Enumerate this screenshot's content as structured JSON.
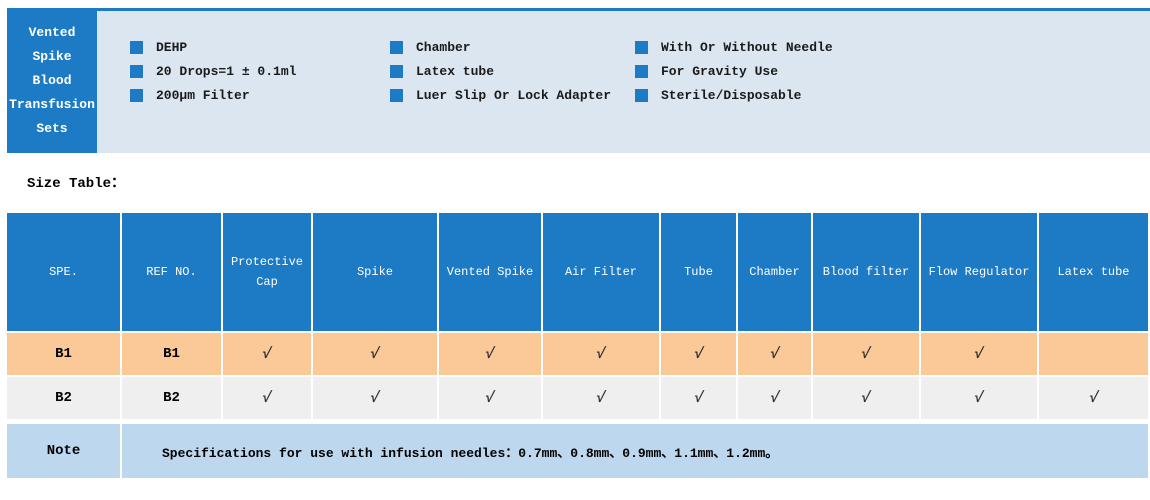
{
  "colors": {
    "primary_blue": "#1d7bc6",
    "panel_light_blue": "#dce6f1",
    "row_b1_orange": "#fbc998",
    "row_b2_gray": "#efefef",
    "note_row_blue": "#bdd7ee",
    "check_color": "#2e2e2e"
  },
  "header": {
    "title_lines": [
      "Vented",
      "Spike",
      "Blood",
      "Transfusion",
      "Sets"
    ],
    "feature_columns": [
      [
        "DEHP",
        "20 Drops=1 ± 0.1ml",
        "200μm Filter"
      ],
      [
        "Chamber",
        "Latex tube",
        "Luer Slip Or Lock Adapter"
      ],
      [
        "With Or Without Needle",
        "For Gravity Use",
        "Sterile/Disposable"
      ]
    ]
  },
  "size_table": {
    "section_label": "Size Table：",
    "columns": [
      "SPE.",
      "REF NO.",
      "Protective Cap",
      "Spike",
      "Vented Spike",
      "Air Filter",
      "Tube",
      "Chamber",
      "Blood filter",
      "Flow Regulator",
      "Latex tube"
    ],
    "check_glyph": "√",
    "rows": [
      {
        "spe": "B1",
        "ref": "B1",
        "checks": [
          true,
          true,
          true,
          true,
          true,
          true,
          true,
          true,
          false
        ]
      },
      {
        "spe": "B2",
        "ref": "B2",
        "checks": [
          true,
          true,
          true,
          true,
          true,
          true,
          true,
          true,
          true
        ]
      }
    ],
    "note_label": "Note",
    "note_text": "Specifications for use with infusion needles：0.7mm、0.8mm、0.9mm、1.1mm、1.2mm。"
  }
}
